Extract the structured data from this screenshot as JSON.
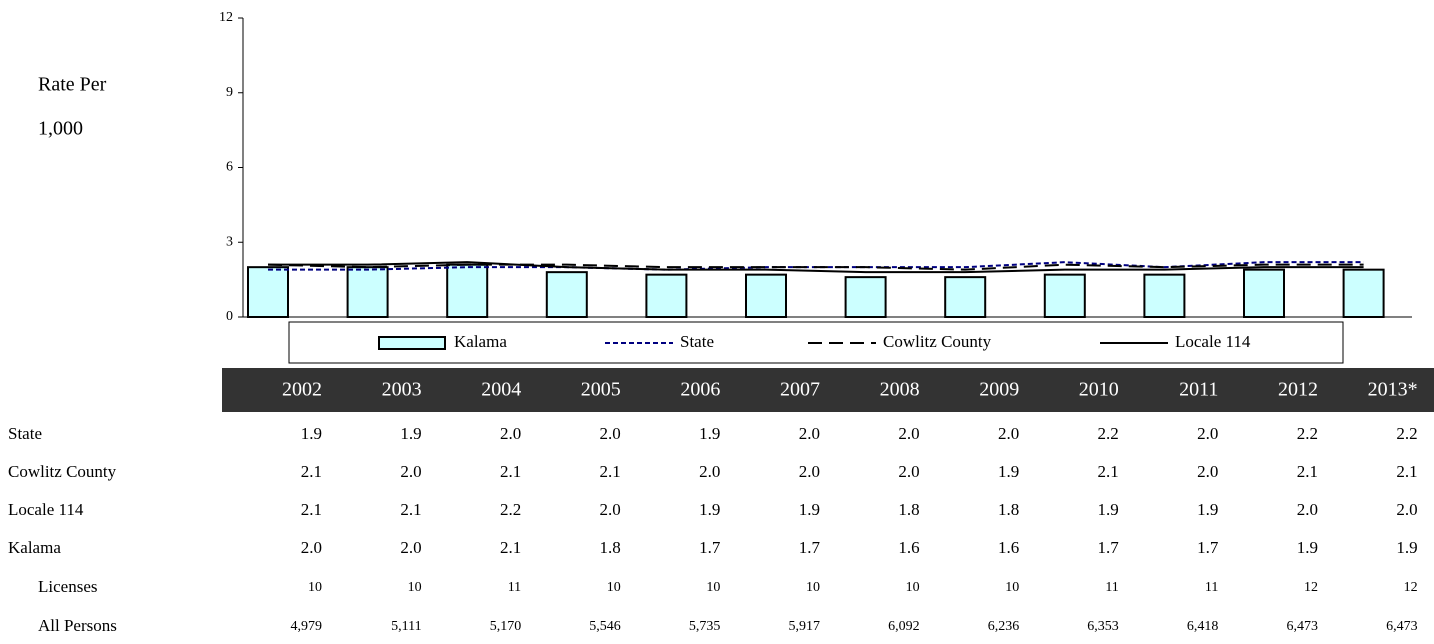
{
  "chart_data": {
    "type": "bar",
    "ylabel": [
      "Rate Per",
      "1,000"
    ],
    "categories": [
      "2002",
      "2003",
      "2004",
      "2005",
      "2006",
      "2007",
      "2008",
      "2009",
      "2010",
      "2011",
      "2012",
      "2013*"
    ],
    "ylim": [
      0,
      12
    ],
    "yticks": [
      0,
      3,
      6,
      9,
      12
    ],
    "series": [
      {
        "name": "Kalama",
        "type": "bar",
        "color": "#ccffff",
        "values": [
          2.0,
          2.0,
          2.1,
          1.8,
          1.7,
          1.7,
          1.6,
          1.6,
          1.7,
          1.7,
          1.9,
          1.9
        ],
        "value_labels": [
          "2.0",
          "2.0",
          "2.1",
          "1.8",
          "1.7",
          "1.7",
          "1.6",
          "1.6",
          "1.7",
          "1.7",
          "1.9",
          "1.9"
        ]
      },
      {
        "name": "State",
        "type": "line",
        "color": "#000080",
        "dash": "short",
        "values": [
          1.9,
          1.9,
          2.0,
          2.0,
          1.9,
          2.0,
          2.0,
          2.0,
          2.2,
          2.0,
          2.2,
          2.2
        ],
        "value_labels": [
          "1.9",
          "1.9",
          "2.0",
          "2.0",
          "1.9",
          "2.0",
          "2.0",
          "2.0",
          "2.2",
          "2.0",
          "2.2",
          "2.2"
        ]
      },
      {
        "name": "Cowlitz County",
        "type": "line",
        "color": "#000000",
        "dash": "long",
        "values": [
          2.1,
          2.0,
          2.1,
          2.1,
          2.0,
          2.0,
          2.0,
          1.9,
          2.1,
          2.0,
          2.1,
          2.1
        ],
        "value_labels": [
          "2.1",
          "2.0",
          "2.1",
          "2.1",
          "2.0",
          "2.0",
          "2.0",
          "1.9",
          "2.1",
          "2.0",
          "2.1",
          "2.1"
        ]
      },
      {
        "name": "Locale 114",
        "type": "line",
        "color": "#000000",
        "dash": "solid",
        "values": [
          2.1,
          2.1,
          2.2,
          2.0,
          1.9,
          1.9,
          1.8,
          1.8,
          1.9,
          1.9,
          2.0,
          2.0
        ],
        "value_labels": [
          "2.1",
          "2.1",
          "2.2",
          "2.0",
          "1.9",
          "1.9",
          "1.8",
          "1.8",
          "1.9",
          "1.9",
          "2.0",
          "2.0"
        ]
      }
    ],
    "table_rows": [
      {
        "name": "Licenses",
        "values": [
          10,
          10,
          11,
          10,
          10,
          10,
          10,
          10,
          11,
          11,
          12,
          12
        ]
      },
      {
        "name": "All Persons",
        "values": [
          4979,
          5111,
          5170,
          5546,
          5735,
          5917,
          6092,
          6236,
          6353,
          6418,
          6473,
          6473
        ],
        "value_labels": [
          "4,979",
          "5,111",
          "5,170",
          "5,546",
          "5,735",
          "5,917",
          "6,092",
          "6,236",
          "6,353",
          "6,418",
          "6,473",
          "6,473"
        ]
      }
    ]
  }
}
